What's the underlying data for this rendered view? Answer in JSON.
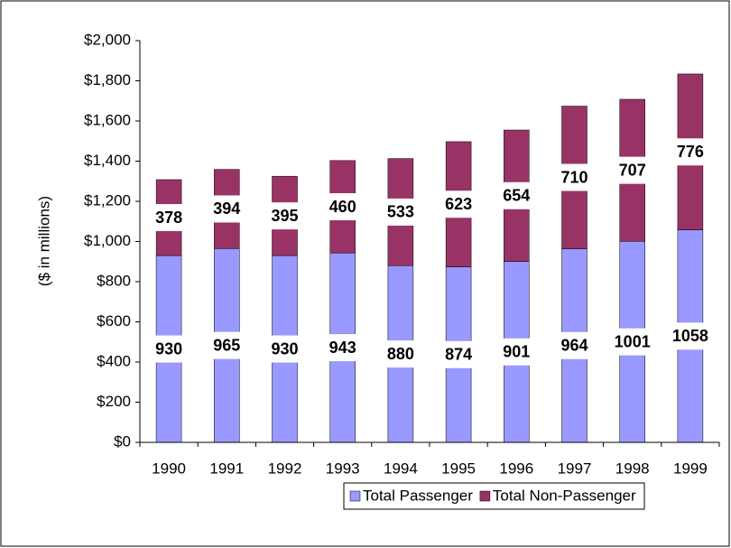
{
  "chart_data": {
    "type": "stacked_bar",
    "categories": [
      "1990",
      "1991",
      "1992",
      "1993",
      "1994",
      "1995",
      "1996",
      "1997",
      "1998",
      "1999"
    ],
    "series": [
      {
        "name": "Total Passenger",
        "color": "#9999ff",
        "values": [
          930,
          965,
          930,
          943,
          880,
          874,
          901,
          964,
          1001,
          1058
        ]
      },
      {
        "name": "Total Non-Passenger",
        "color": "#993366",
        "values": [
          378,
          394,
          395,
          460,
          533,
          623,
          654,
          710,
          707,
          776
        ]
      }
    ],
    "y_axis_label": "($ in millions)",
    "ylim": [
      0,
      2000
    ],
    "yticks": [
      {
        "value": 0,
        "label": "$0"
      },
      {
        "value": 200,
        "label": "$200"
      },
      {
        "value": 400,
        "label": "$400"
      },
      {
        "value": 600,
        "label": "$600"
      },
      {
        "value": 800,
        "label": "$800"
      },
      {
        "value": 1000,
        "label": "$1,000"
      },
      {
        "value": 1200,
        "label": "$1,200"
      },
      {
        "value": 1400,
        "label": "$1,400"
      },
      {
        "value": 1600,
        "label": "$1,600"
      },
      {
        "value": 1800,
        "label": "$1,800"
      },
      {
        "value": 2000,
        "label": "$2,000"
      }
    ],
    "grid": false,
    "legend": "bottom"
  }
}
